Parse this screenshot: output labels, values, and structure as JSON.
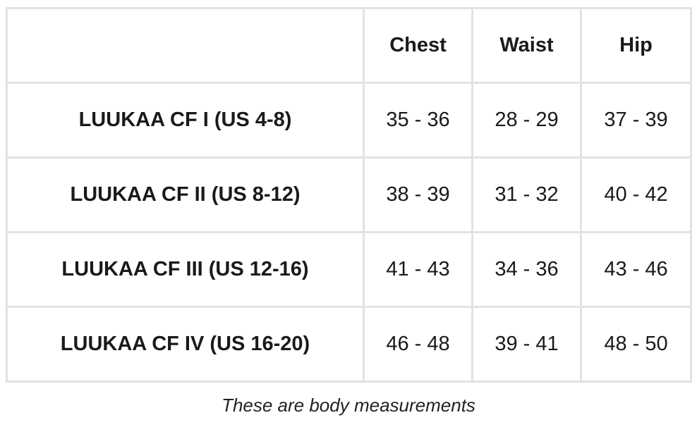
{
  "table": {
    "columns": [
      "Chest",
      "Waist",
      "Hip"
    ],
    "rows": [
      [
        "LUUKAA CF I (US 4-8)",
        "35 - 36",
        "28 - 29",
        "37 - 39"
      ],
      [
        "LUUKAA CF II (US 8-12)",
        "38 - 39",
        "31 - 32",
        "40 - 42"
      ],
      [
        "LUUKAA CF III (US 12-16)",
        "41 - 43",
        "34 - 36",
        "43 - 46"
      ],
      [
        "LUUKAA CF IV (US 16-20)",
        "46 - 48",
        "39 - 41",
        "48 - 50"
      ]
    ]
  },
  "caption": "These are body measurements"
}
